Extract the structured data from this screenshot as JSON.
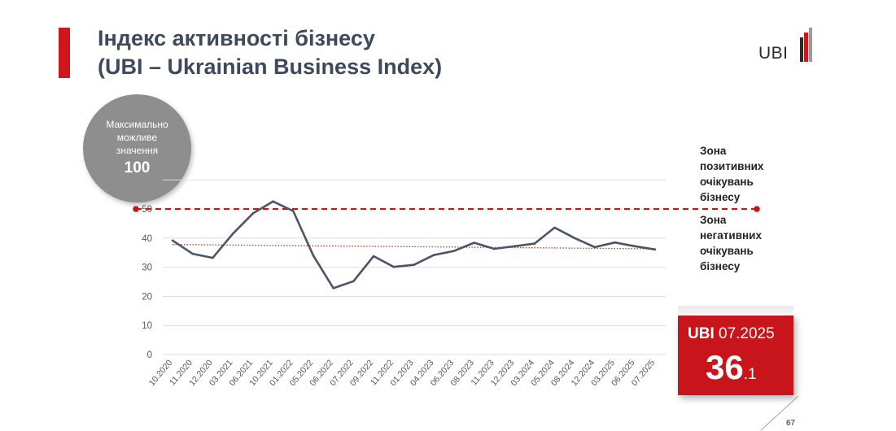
{
  "header": {
    "title": "Індекс активності бізнесу\n(UBI – Ukrainian Business Index)",
    "logo_text": "UBI"
  },
  "max_circle": {
    "label": "Максимально\nможливе\nзначення",
    "value": "100"
  },
  "zones": {
    "positive": "Зона\nпозитивних\nочікувань\nбізнесу",
    "negative": "Зона\nнегативних\nочікувань\nбізнесу"
  },
  "current_box": {
    "label": "UBI",
    "period": "07.2025",
    "value_main": "36",
    "value_decimal": ".1"
  },
  "page_number": "67",
  "colors": {
    "accent": "#d0151b",
    "line": "#4a5568",
    "threshold": "#c8141b",
    "trend": "#c0392b",
    "grid": "#dddddd"
  },
  "chart_data": {
    "type": "line",
    "ylim": [
      0,
      60
    ],
    "yticks": [
      0,
      10,
      20,
      30,
      40,
      50
    ],
    "grid": true,
    "x": [
      "10.2020",
      "11.2020",
      "12.2020",
      "03.2021",
      "06.2021",
      "10.2021",
      "01.2022",
      "05.2022",
      "06.2022",
      "07.2022",
      "09.2022",
      "11.2022",
      "01.2023",
      "04.2023",
      "06.2023",
      "08.2023",
      "11.2023",
      "12.2023",
      "03.2024",
      "05.2024",
      "08.2024",
      "12.2024",
      "03.2025",
      "06.2025",
      "07.2025"
    ],
    "series": [
      {
        "values": [
          39.2,
          34.6,
          33.2,
          41.5,
          48.5,
          52.6,
          49.3,
          34.0,
          22.8,
          25.2,
          33.8,
          30.1,
          30.8,
          34.2,
          35.6,
          38.4,
          36.3,
          37.2,
          38.1,
          43.6,
          40.0,
          36.9,
          38.5,
          37.2,
          36.1
        ]
      }
    ],
    "threshold": 50,
    "trend": [
      37.8,
      36.3
    ]
  }
}
